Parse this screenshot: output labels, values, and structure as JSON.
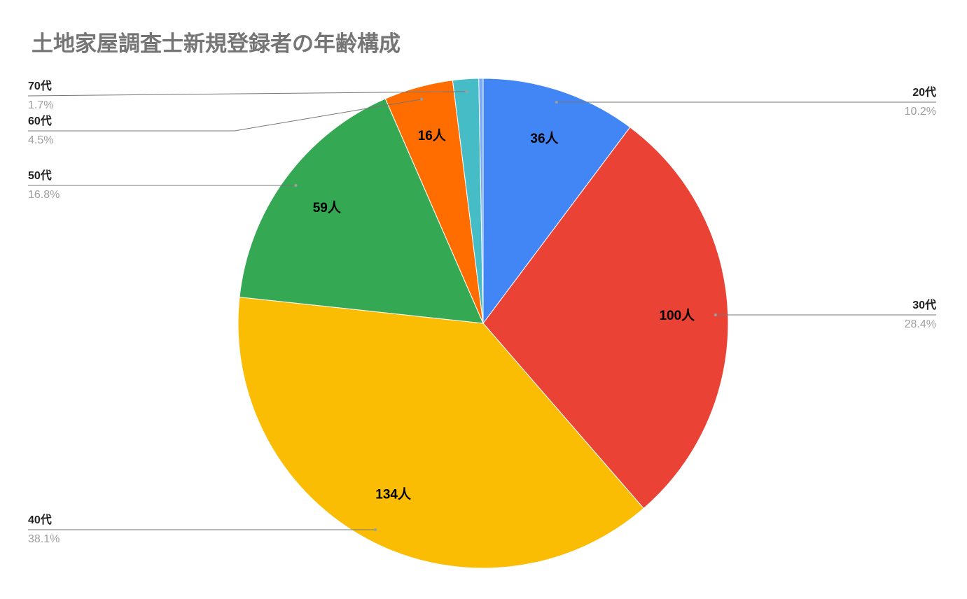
{
  "chart_data": {
    "type": "pie",
    "title": "土地家屋調査士新規登録者の年齢構成",
    "categories": [
      "20代",
      "30代",
      "40代",
      "50代",
      "60代",
      "70代",
      null
    ],
    "values": [
      36,
      100,
      134,
      59,
      16,
      6,
      1
    ],
    "value_labels": [
      "36人",
      "100人",
      "134人",
      "59人",
      "16人",
      null,
      null
    ],
    "percent_labels": [
      "10.2%",
      "28.4%",
      "38.1%",
      "16.8%",
      "4.5%",
      "1.7%",
      null
    ],
    "colors": [
      "#4285f4",
      "#ea4335",
      "#fbbc04",
      "#34a853",
      "#ff6d01",
      "#46bdc6",
      "#7baaf7"
    ]
  }
}
